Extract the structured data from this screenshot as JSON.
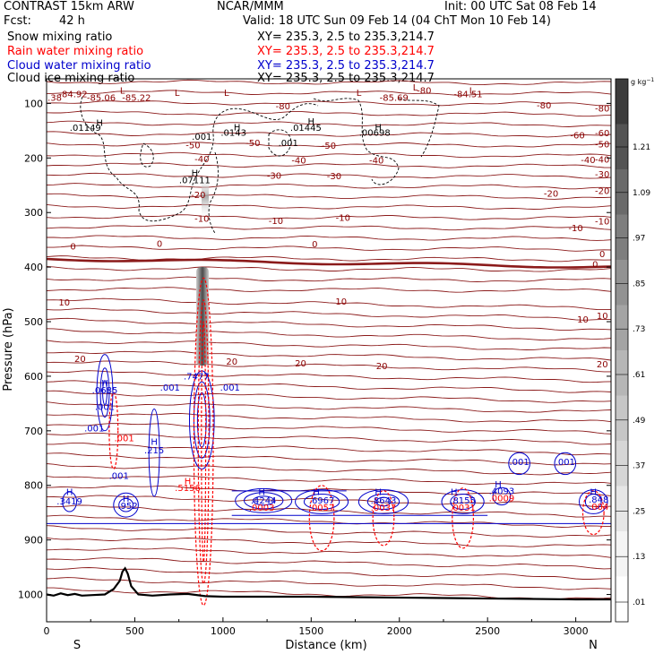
{
  "header": {
    "model": "CONTRAST 15km ARW",
    "org": "NCAR/MMM",
    "init": "Init: 00 UTC Sat 08 Feb 14",
    "fcst_label": "Fcst:",
    "fcst_value": "42 h",
    "valid": "Valid: 18 UTC Sun 09 Feb 14 (04 ChT Mon 10 Feb 14)"
  },
  "fields": [
    {
      "name": "Snow mixing ratio",
      "xy": "XY= 235.3,  2.5 to 235.3,214.7",
      "color": "#000000"
    },
    {
      "name": "Rain water mixing ratio",
      "xy": "XY= 235.3,  2.5 to 235.3,214.7",
      "color": "#ff0000"
    },
    {
      "name": "Cloud water mixing ratio",
      "xy": "XY= 235.3,  2.5 to 235.3,214.7",
      "color": "#0000cc"
    },
    {
      "name": "Cloud ice mixing ratio",
      "xy": "XY= 235.3,  2.5 to 235.3,214.7",
      "color": "#000000"
    }
  ],
  "chart_data": {
    "type": "contour",
    "xlabel": "Distance (km)",
    "ylabel": "Pressure (hPa)",
    "xlim": [
      0,
      3200
    ],
    "ylim": [
      1050,
      55
    ],
    "x_ticks": [
      0,
      500,
      1000,
      1500,
      2000,
      2500,
      3000
    ],
    "y_ticks": [
      100,
      200,
      300,
      400,
      500,
      600,
      700,
      800,
      900,
      1000
    ],
    "x_end_labels": {
      "left": "S",
      "right": "N"
    },
    "colorbar": {
      "unit": "g kg",
      "unit_exp": "−1",
      "levels": [
        ".01",
        ".13",
        ".25",
        ".37",
        ".49",
        ".61",
        ".73",
        ".85",
        ".97",
        "1.09",
        "1.21"
      ],
      "shades": [
        "#ffffff",
        "#f4f4f4",
        "#e6e6e6",
        "#d6d6d6",
        "#c6c6c6",
        "#b6b6b6",
        "#a4a4a4",
        "#929292",
        "#7e7e7e",
        "#6a6a6a",
        "#545454",
        "#3c3c3c"
      ]
    },
    "temperature_isotherms": [
      {
        "label": "-80",
        "p": 118
      },
      {
        "label": "-60",
        "p": 163
      },
      {
        "label": "-50",
        "p": 184
      },
      {
        "label": "-40",
        "p": 212
      },
      {
        "label": "-30",
        "p": 239
      },
      {
        "label": "-20",
        "p": 269
      },
      {
        "label": "-10",
        "p": 325
      },
      {
        "label": "0",
        "p": 385
      },
      {
        "label": "10",
        "p": 498
      },
      {
        "label": "20",
        "p": 587
      }
    ],
    "contour_labels": [
      {
        "text": "-84.92",
        "x": 150,
        "p": 89,
        "color": "#8b0000"
      },
      {
        "text": "-85.06",
        "x": 310,
        "p": 95,
        "color": "#8b0000"
      },
      {
        "text": "-85.22",
        "x": 510,
        "p": 95,
        "color": "#8b0000"
      },
      {
        "text": "-85.69",
        "x": 1970,
        "p": 95,
        "color": "#8b0000"
      },
      {
        "text": "-84.51",
        "x": 2390,
        "p": 89,
        "color": "#8b0000"
      },
      {
        "text": "5.38",
        "x": 30,
        "p": 95,
        "color": "#8b0000"
      },
      {
        "text": "-80",
        "x": 1340,
        "p": 111,
        "color": "#8b0000"
      },
      {
        "text": "-80",
        "x": 2140,
        "p": 82,
        "color": "#8b0000"
      },
      {
        "text": "-80",
        "x": 2820,
        "p": 109,
        "color": "#8b0000"
      },
      {
        "text": "-60",
        "x": 3010,
        "p": 164,
        "color": "#8b0000"
      },
      {
        "text": "-50",
        "x": 830,
        "p": 182,
        "color": "#8b0000"
      },
      {
        "text": "-50",
        "x": 1170,
        "p": 178,
        "color": "#8b0000"
      },
      {
        "text": "-50",
        "x": 1600,
        "p": 183,
        "color": "#8b0000"
      },
      {
        "text": "-40",
        "x": 880,
        "p": 208,
        "color": "#8b0000"
      },
      {
        "text": "-40",
        "x": 1430,
        "p": 210,
        "color": "#8b0000"
      },
      {
        "text": "-40",
        "x": 1870,
        "p": 210,
        "color": "#8b0000"
      },
      {
        "text": "-40",
        "x": 3070,
        "p": 209,
        "color": "#8b0000"
      },
      {
        "text": "-30",
        "x": 1290,
        "p": 238,
        "color": "#8b0000"
      },
      {
        "text": "-30",
        "x": 1630,
        "p": 239,
        "color": "#8b0000"
      },
      {
        "text": "-20",
        "x": 860,
        "p": 273,
        "color": "#8b0000"
      },
      {
        "text": "-20",
        "x": 2860,
        "p": 271,
        "color": "#8b0000"
      },
      {
        "text": "-10",
        "x": 880,
        "p": 317,
        "color": "#8b0000"
      },
      {
        "text": "-10",
        "x": 1300,
        "p": 321,
        "color": "#8b0000"
      },
      {
        "text": "-10",
        "x": 1680,
        "p": 315,
        "color": "#8b0000"
      },
      {
        "text": "-10",
        "x": 3000,
        "p": 334,
        "color": "#8b0000"
      },
      {
        "text": "0",
        "x": 150,
        "p": 368,
        "color": "#8b0000"
      },
      {
        "text": "0",
        "x": 640,
        "p": 363,
        "color": "#8b0000"
      },
      {
        "text": "0",
        "x": 1520,
        "p": 364,
        "color": "#8b0000"
      },
      {
        "text": "0",
        "x": 3110,
        "p": 401,
        "color": "#8b0000"
      },
      {
        "text": "10",
        "x": 100,
        "p": 470,
        "color": "#8b0000"
      },
      {
        "text": "10",
        "x": 1670,
        "p": 469,
        "color": "#8b0000"
      },
      {
        "text": "10",
        "x": 3040,
        "p": 502,
        "color": "#8b0000"
      },
      {
        "text": "20",
        "x": 190,
        "p": 574,
        "color": "#8b0000"
      },
      {
        "text": "20",
        "x": 1050,
        "p": 579,
        "color": "#8b0000"
      },
      {
        "text": "20",
        "x": 1440,
        "p": 582,
        "color": "#8b0000"
      },
      {
        "text": "20",
        "x": 1900,
        "p": 587,
        "color": "#8b0000"
      },
      {
        "text": "H",
        "x": 300,
        "p": 141,
        "color": "#000000"
      },
      {
        "text": ".01149",
        "x": 220,
        "p": 150,
        "color": "#000000"
      },
      {
        "text": ".001",
        "x": 880,
        "p": 167,
        "color": "#000000"
      },
      {
        "text": "H",
        "x": 1080,
        "p": 149,
        "color": "#000000"
      },
      {
        "text": ".0143",
        "x": 1060,
        "p": 159,
        "color": "#000000"
      },
      {
        "text": "H",
        "x": 1500,
        "p": 139,
        "color": "#000000"
      },
      {
        "text": ".01445",
        "x": 1470,
        "p": 150,
        "color": "#000000"
      },
      {
        "text": ".001",
        "x": 1370,
        "p": 178,
        "color": "#000000"
      },
      {
        "text": "H",
        "x": 1880,
        "p": 149,
        "color": "#000000"
      },
      {
        "text": ".00698",
        "x": 1860,
        "p": 159,
        "color": "#000000"
      },
      {
        "text": "H",
        "x": 840,
        "p": 233,
        "color": "#000000"
      },
      {
        "text": ".07111",
        "x": 840,
        "p": 246,
        "color": "#000000"
      },
      {
        "text": "H",
        "x": 330,
        "p": 618,
        "color": "#0000cc"
      },
      {
        "text": ".0685",
        "x": 330,
        "p": 631,
        "color": "#0000cc"
      },
      {
        "text": ".001",
        "x": 330,
        "p": 662,
        "color": "#0000cc"
      },
      {
        "text": ".001",
        "x": 270,
        "p": 701,
        "color": "#0000cc"
      },
      {
        "text": ".001",
        "x": 700,
        "p": 626,
        "color": "#0000cc"
      },
      {
        "text": ".7477",
        "x": 850,
        "p": 606,
        "color": "#0000cc"
      },
      {
        "text": ".001",
        "x": 1040,
        "p": 626,
        "color": "#0000cc"
      },
      {
        "text": ".001",
        "x": 440,
        "p": 719,
        "color": "#ff0000"
      },
      {
        "text": "H",
        "x": 610,
        "p": 726,
        "color": "#0000cc"
      },
      {
        "text": ".215",
        "x": 610,
        "p": 741,
        "color": "#0000cc"
      },
      {
        "text": ".001",
        "x": 410,
        "p": 788,
        "color": "#0000cc"
      },
      {
        "text": "H",
        "x": 800,
        "p": 798,
        "color": "#ff0000"
      },
      {
        "text": ".5156",
        "x": 800,
        "p": 810,
        "color": "#ff0000"
      },
      {
        "text": "H",
        "x": 130,
        "p": 818,
        "color": "#0000cc"
      },
      {
        "text": ".3419",
        "x": 130,
        "p": 835,
        "color": "#0000cc"
      },
      {
        "text": "H",
        "x": 450,
        "p": 830,
        "color": "#0000cc"
      },
      {
        "text": ".952",
        "x": 460,
        "p": 843,
        "color": "#0000cc"
      },
      {
        "text": "H",
        "x": 1220,
        "p": 818,
        "color": "#0000cc"
      },
      {
        "text": ".4244",
        "x": 1230,
        "p": 833,
        "color": "#0000cc"
      },
      {
        "text": ".0003",
        "x": 1220,
        "p": 846,
        "color": "#ff0000"
      },
      {
        "text": "H",
        "x": 1530,
        "p": 818,
        "color": "#0000cc"
      },
      {
        "text": ".6967",
        "x": 1560,
        "p": 833,
        "color": "#0000cc"
      },
      {
        "text": ".0057",
        "x": 1560,
        "p": 846,
        "color": "#ff0000"
      },
      {
        "text": "H",
        "x": 1880,
        "p": 818,
        "color": "#0000cc"
      },
      {
        "text": ".8643",
        "x": 1910,
        "p": 833,
        "color": "#0000cc"
      },
      {
        "text": ".0037",
        "x": 1910,
        "p": 846,
        "color": "#ff0000"
      },
      {
        "text": "H",
        "x": 2310,
        "p": 818,
        "color": "#0000cc"
      },
      {
        "text": ".8155",
        "x": 2360,
        "p": 833,
        "color": "#0000cc"
      },
      {
        "text": ".0031",
        "x": 2360,
        "p": 846,
        "color": "#ff0000"
      },
      {
        "text": "H",
        "x": 2560,
        "p": 804,
        "color": "#0000cc"
      },
      {
        "text": ".4093",
        "x": 2580,
        "p": 816,
        "color": "#0000cc"
      },
      {
        "text": ".0009",
        "x": 2580,
        "p": 829,
        "color": "#ff0000"
      },
      {
        "text": ".001",
        "x": 2680,
        "p": 763,
        "color": "#0000cc"
      },
      {
        "text": ".001",
        "x": 2940,
        "p": 763,
        "color": "#0000cc"
      },
      {
        "text": "H",
        "x": 3100,
        "p": 818,
        "color": "#0000cc"
      },
      {
        "text": ".848",
        "x": 3130,
        "p": 832,
        "color": "#0000cc"
      },
      {
        "text": ".004",
        "x": 3130,
        "p": 845,
        "color": "#ff0000"
      },
      {
        "text": "L",
        "x": 430,
        "p": 82,
        "color": "#8b0000"
      },
      {
        "text": "L",
        "x": 740,
        "p": 86,
        "color": "#8b0000"
      },
      {
        "text": "L",
        "x": 1020,
        "p": 86,
        "color": "#8b0000"
      },
      {
        "text": "L",
        "x": 1770,
        "p": 86,
        "color": "#8b0000"
      },
      {
        "text": "L",
        "x": 2090,
        "p": 76,
        "color": "#8b0000"
      },
      {
        "text": "L",
        "x": 2410,
        "p": 82,
        "color": "#8b0000"
      }
    ]
  }
}
